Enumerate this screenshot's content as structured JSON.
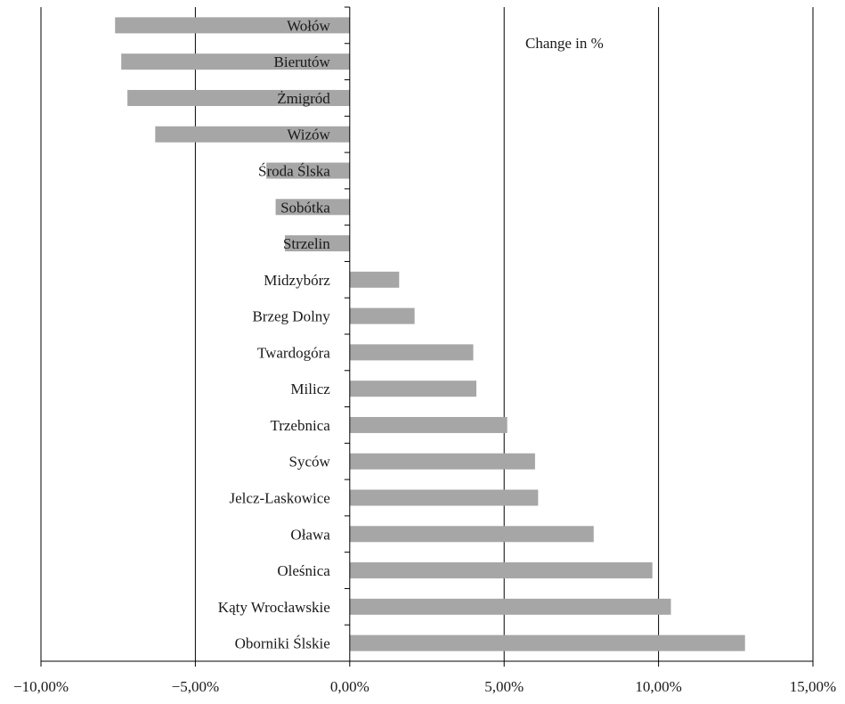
{
  "chart_data": {
    "type": "bar",
    "orientation": "horizontal",
    "annotation": "Change in %",
    "categories": [
      "Wołów",
      "Bierutów",
      "Żmigród",
      "Wizów",
      "Środa Ślska",
      "Sobótka",
      "Strzelin",
      "Midzybórz",
      "Brzeg Dolny",
      "Twardogóra",
      "Milicz",
      "Trzebnica",
      "Syców",
      "Jelcz-Laskowice",
      "Oława",
      "Oleśnica",
      "Kąty Wrocławskie",
      "Oborniki Ślskie"
    ],
    "values": [
      -7.6,
      -7.4,
      -7.2,
      -6.3,
      -2.7,
      -2.4,
      -2.1,
      1.6,
      2.1,
      4.0,
      4.1,
      5.1,
      6.0,
      6.1,
      7.9,
      9.8,
      10.4,
      12.8
    ],
    "xlim": [
      -10,
      15
    ],
    "xticks": [
      -10,
      -5,
      0,
      5,
      10,
      15
    ],
    "xtick_labels": [
      "−10,00%",
      "−5,00%",
      "0,00%",
      "5,00%",
      "10,00%",
      "15,00%"
    ],
    "grid": "vertical",
    "bar_color": "#a6a6a6"
  }
}
